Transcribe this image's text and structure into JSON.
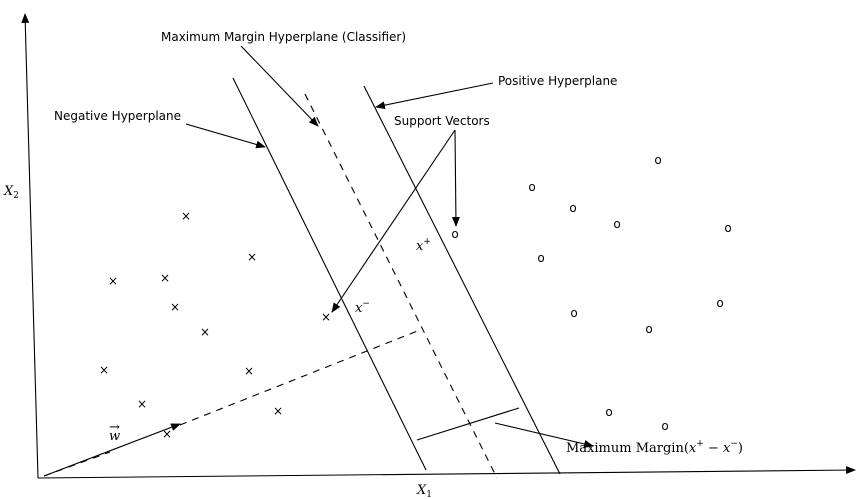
{
  "axes": {
    "x_label": "X",
    "x_sub": "1",
    "y_label": "X",
    "y_sub": "2"
  },
  "labels": {
    "max_margin_hyperplane": "Maximum Margin Hyperplane (Classifier)",
    "positive_hyperplane": "Positive Hyperplane",
    "negative_hyperplane": "Negative Hyperplane",
    "support_vectors": "Support Vectors",
    "x_plus": "x",
    "x_plus_sup": "+",
    "x_minus": "x",
    "x_minus_sup": "−",
    "w_vector": "w",
    "w_arrow": "→",
    "max_margin_text": "Maximum Margin(",
    "max_margin_x1": "x",
    "max_margin_sup1": "+",
    "max_margin_op": " − ",
    "max_margin_x2": "x",
    "max_margin_sup2": "−",
    "max_margin_close": ")"
  },
  "markers": {
    "cross_glyph": "×",
    "circle_glyph": "o"
  }
}
